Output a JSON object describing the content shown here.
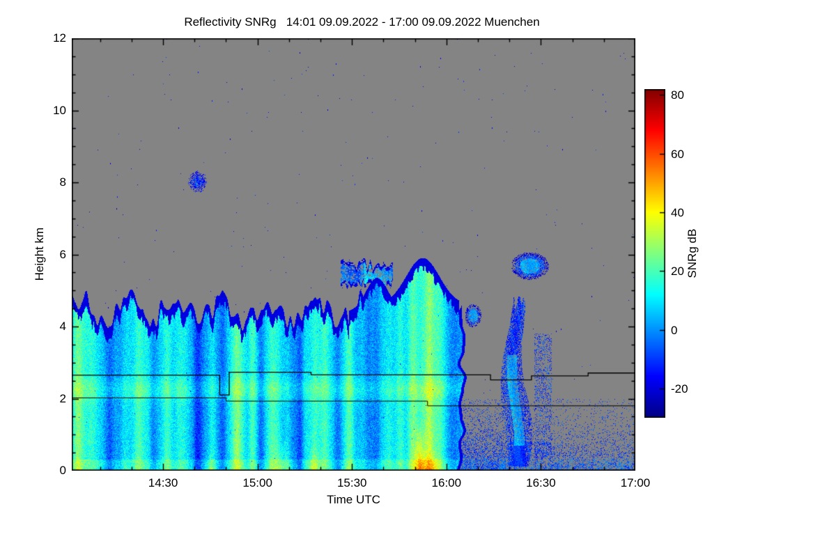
{
  "page": {
    "background": "#ffffff"
  },
  "chart_data": {
    "type": "heatmap",
    "title": "Reflectivity SNRg   14:01 09.09.2022 - 17:00 09.09.2022 Muenchen",
    "instrument_product": "Reflectivity SNRg",
    "station": "Muenchen",
    "time_start": "14:01 09.09.2022",
    "time_end": "17:00 09.09.2022",
    "xlabel": "Time UTC",
    "ylabel": "Height km",
    "x_ticks": [
      {
        "label": "14:30",
        "t": 29
      },
      {
        "label": "15:00",
        "t": 59
      },
      {
        "label": "15:30",
        "t": 89
      },
      {
        "label": "16:00",
        "t": 119
      },
      {
        "label": "16:30",
        "t": 149
      },
      {
        "label": "17:00",
        "t": 179
      }
    ],
    "x_minor_tick_minutes": 10,
    "x_range_minutes": 179,
    "y_ticks": [
      0,
      2,
      4,
      6,
      8,
      10,
      12
    ],
    "ylim": [
      0,
      12
    ],
    "grid": false,
    "background_color": "#848484",
    "colorbar": {
      "label": "SNRg dB",
      "ticks": [
        80,
        60,
        40,
        20,
        0,
        -20
      ],
      "range": [
        -30,
        82
      ],
      "colormap": "jet",
      "position": "right"
    },
    "features": {
      "note": "procedural description of radar time-height echo field; t = minutes after 14:01 UTC, h = km",
      "seed": 1337,
      "vmin": -30,
      "vmax": 82,
      "main_echo": {
        "t_start": 0,
        "t_end": 123.2,
        "top_base_km": 4.45,
        "top_max_km": 5.9,
        "note": "continuous precipitating cloud 14:01-16:05, ragged top ~4.2-4.9 km, raised to ~5.9 km 15:45-16:02"
      },
      "streaks": [
        [
          2,
          1.6,
          14
        ],
        [
          7,
          1.8,
          6
        ],
        [
          12,
          1.4,
          -12
        ],
        [
          16.5,
          1.2,
          12
        ],
        [
          21,
          1.8,
          16
        ],
        [
          26,
          1.4,
          -10
        ],
        [
          30.5,
          1.5,
          10
        ],
        [
          35,
          1.8,
          6
        ],
        [
          40,
          1.5,
          -12
        ],
        [
          44.5,
          1.5,
          18
        ],
        [
          48,
          1.0,
          -6
        ],
        [
          52.5,
          1.8,
          20
        ],
        [
          57,
          1.0,
          8
        ],
        [
          60,
          1.4,
          -10
        ],
        [
          64,
          1.8,
          22
        ],
        [
          68.5,
          1.4,
          10
        ],
        [
          72.5,
          1.2,
          -13
        ],
        [
          76.5,
          1.8,
          16
        ],
        [
          80.5,
          1.4,
          8
        ],
        [
          84.5,
          1.5,
          -14
        ],
        [
          88.5,
          1.8,
          12
        ],
        [
          92.5,
          1.4,
          6
        ],
        [
          96.5,
          1.4,
          -10
        ],
        [
          100.5,
          1.8,
          14
        ],
        [
          104.5,
          1.5,
          8
        ],
        [
          108.5,
          1.8,
          18
        ],
        [
          113,
          2.4,
          24
        ],
        [
          117,
          1.5,
          10
        ],
        [
          120.5,
          1.4,
          -6
        ]
      ],
      "hotspots": [
        [
          44,
          1.2,
          0.5,
          10
        ],
        [
          67,
          2.0,
          0.9,
          12
        ],
        [
          77,
          1.6,
          0.7,
          10
        ],
        [
          110.5,
          1.4,
          1.4,
          26
        ],
        [
          114,
          3.0,
          0.6,
          14
        ]
      ],
      "bright_band_km": 2.25,
      "upper_cloud": {
        "t_start": 85.5,
        "t_end": 102,
        "note": "detached cloud layer 15:27-15:43 between ~5.0 and 5.9 km"
      },
      "small_blob": {
        "t": 127.5,
        "h": 4.3,
        "rt": 2.6,
        "rh": 0.32,
        "note": "small echo patch ~16:09 near 4.3 km"
      },
      "high_blob": {
        "t": 40,
        "h": 8.02,
        "rt": 3.0,
        "rh": 0.3,
        "note": "small cloud fragment ~14:41 near 8 km"
      },
      "secondary_echo": {
        "t_start": 133,
        "t_center": 141,
        "t_end": 154,
        "note": "weak virga column ~16:14-16:35, 0-4.8 km"
      },
      "secondary_blob": {
        "t": 145.5,
        "h": 5.68,
        "rt": 6.0,
        "rh": 0.38,
        "note": "cloud patch ~16:21-16:33 near 5.7 km"
      },
      "ground_speckle": {
        "t_start": 121.5,
        "h_max": 2.0,
        "note": "clutter/noise speckle below ~1.9 km after 16:03"
      },
      "noise_dots": 300,
      "boundary_line_upper": [
        [
          0,
          2.65
        ],
        [
          47,
          2.65
        ],
        [
          47,
          2.1
        ],
        [
          50,
          2.1
        ],
        [
          50,
          2.73
        ],
        [
          76,
          2.73
        ],
        [
          76,
          2.66
        ],
        [
          133,
          2.66
        ],
        [
          133,
          2.52
        ],
        [
          146,
          2.52
        ],
        [
          146,
          2.63
        ],
        [
          164,
          2.63
        ],
        [
          164,
          2.71
        ],
        [
          179,
          2.71
        ]
      ],
      "boundary_line_lower": [
        [
          0,
          2.02
        ],
        [
          49,
          2.02
        ],
        [
          49,
          1.93
        ],
        [
          113,
          1.93
        ],
        [
          113,
          1.8
        ],
        [
          179,
          1.8
        ]
      ]
    }
  }
}
